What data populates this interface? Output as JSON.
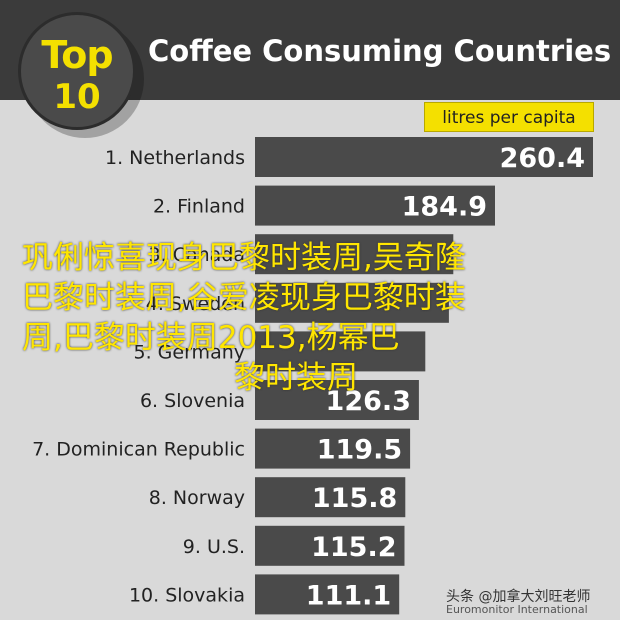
{
  "chart_data": {
    "type": "bar",
    "orientation": "horizontal",
    "title": "Coffee Consuming Countries",
    "badge_top": "Top",
    "badge_number": "10",
    "unit_label": "litres per capita",
    "categories": [
      "1. Netherlands",
      "2. Finland",
      "3. Canada",
      "4. Sweden",
      "5. Germany",
      "6. Slovenia",
      "7. Dominican Republic",
      "8. Norway",
      "9. U.S.",
      "10. Slovakia"
    ],
    "values": [
      260.4,
      184.9,
      152.8,
      149.4,
      131.2,
      126.3,
      119.5,
      115.8,
      115.2,
      111.1
    ],
    "value_labels": [
      "260.4",
      "184.9",
      "",
      "",
      "",
      "126.3",
      "119.5",
      "115.8",
      "115.2",
      "111.1"
    ],
    "xlim": [
      0,
      260.4
    ],
    "grid": false,
    "legend": "none",
    "colors": {
      "header": "#3b3b3b",
      "bar": "#4a4a4a",
      "accent": "#f4e000",
      "background": "#d9d9d9"
    }
  },
  "overlay": {
    "line1": "巩俐惊喜现身巴黎时装周,吴奇隆",
    "line2": "巴黎时装周,谷爱凌现身巴黎时装",
    "line3": "周,巴黎时装周2013,杨幂巴",
    "line4": "黎时装周"
  },
  "watermark": "头条 @加拿大刘旺老师",
  "source": "Euromonitor International"
}
